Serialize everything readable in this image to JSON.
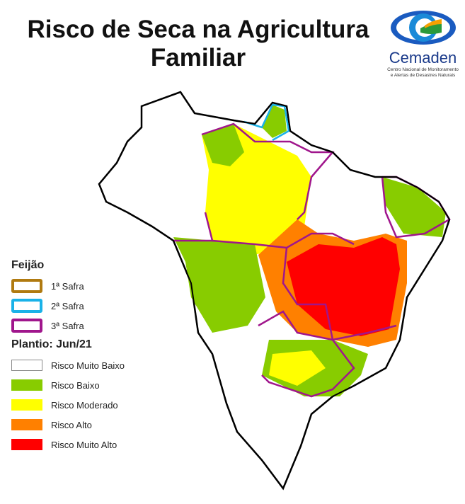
{
  "title_line1": "Risco de Seca na Agricultura",
  "title_line2": "Familiar",
  "logo": {
    "name": "Cemaden",
    "subtitle_line1": "Centro Nacional de Monitoramento",
    "subtitle_line2": "e Alertas de Desastres Naturais"
  },
  "legend": {
    "crop_title": "Feijão",
    "seasons": [
      {
        "label": "1ª Safra",
        "color": "#b07a10"
      },
      {
        "label": "2ª Safra",
        "color": "#1ab2e8"
      },
      {
        "label": "3ª Safra",
        "color": "#a0168c"
      }
    ],
    "planting_title": "Plantio: Jun/21",
    "risk_classes": [
      {
        "label": "Risco Muito Baixo",
        "color": "#ffffff"
      },
      {
        "label": "Risco Baixo",
        "color": "#88cc00"
      },
      {
        "label": "Risco Moderado",
        "color": "#ffff00"
      },
      {
        "label": "Risco Alto",
        "color": "#ff8000"
      },
      {
        "label": "Risco Muito Alto",
        "color": "#ff0000"
      }
    ]
  }
}
